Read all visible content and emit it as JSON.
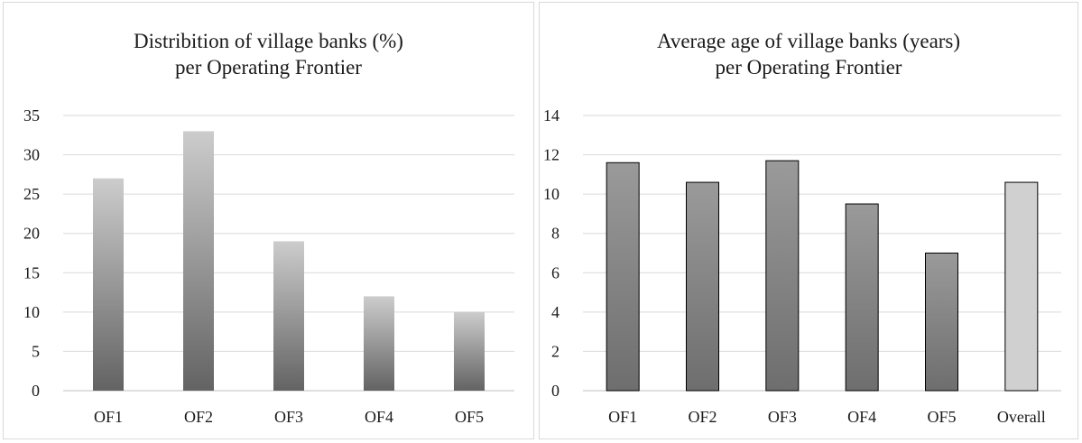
{
  "chart_data": [
    {
      "type": "bar",
      "title": [
        "Distribition of village banks (%)",
        "per Operating Frontier"
      ],
      "categories": [
        "OF1",
        "OF2",
        "OF3",
        "OF4",
        "OF5"
      ],
      "values": [
        27,
        33,
        19,
        12,
        10
      ],
      "ylim": [
        0,
        35
      ],
      "yticks": [
        0,
        5,
        10,
        15,
        20,
        25,
        30,
        35
      ],
      "grid": true,
      "legend": "none",
      "bar_style": "vertical gradient, light gray top to dark gray bottom",
      "colors": {
        "top": "#cccccc",
        "bottom": "#636363",
        "grid": "#d9d9d9",
        "axis": "#bfbfbf"
      }
    },
    {
      "type": "bar",
      "title": [
        "Average age of village banks (years)",
        "per Operating Frontier"
      ],
      "categories": [
        "OF1",
        "OF2",
        "OF3",
        "OF4",
        "OF5",
        "Overall"
      ],
      "values": [
        11.6,
        10.6,
        11.7,
        9.5,
        7.0,
        10.6
      ],
      "ylim": [
        0,
        14
      ],
      "yticks": [
        0,
        2,
        4,
        6,
        8,
        10,
        12,
        14
      ],
      "grid": true,
      "legend": "none",
      "bar_style": "vertical gradient with black outline; Overall bar light gray",
      "colors": {
        "top": "#9a9a9a",
        "bottom": "#6e6e6e",
        "highlight": "#d0d0d0",
        "outline": "#000000",
        "grid": "#d9d9d9",
        "axis": "#bfbfbf"
      }
    }
  ]
}
